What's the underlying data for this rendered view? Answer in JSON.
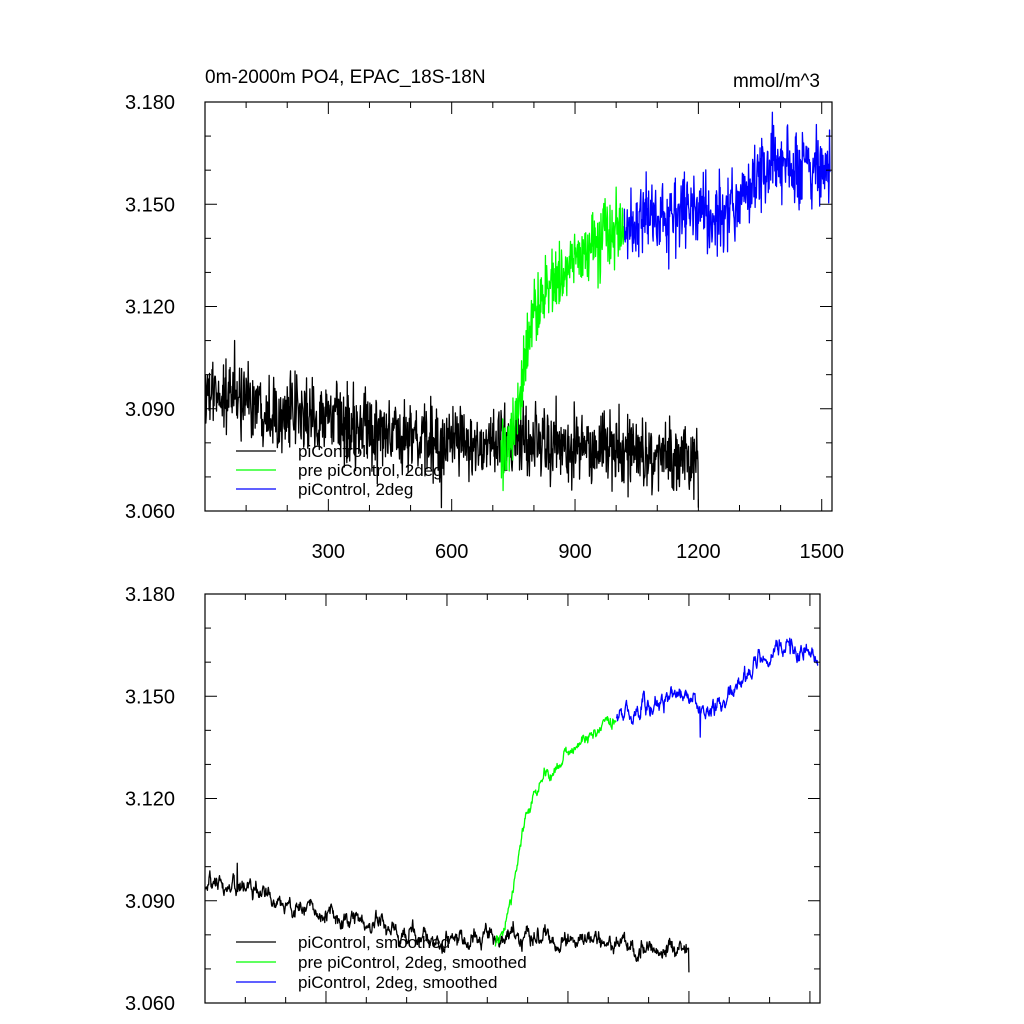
{
  "chart_data": [
    {
      "type": "line",
      "title_left": "0m-2000m PO4, EPAC_18S-18N",
      "title_right": "mmol/m^3",
      "xlim": [
        0,
        1525
      ],
      "ylim": [
        3.06,
        3.18
      ],
      "x_ticks": [
        300,
        600,
        900,
        1200,
        1500
      ],
      "y_ticks": [
        "3.060",
        "3.090",
        "3.120",
        "3.150",
        "3.180"
      ],
      "show_x_tick_labels": true,
      "legend_position": "bottom-left",
      "series": [
        {
          "name": "piControl",
          "color": "#000000",
          "x_range": [
            1,
            1200
          ],
          "anchors": [
            [
              1,
              3.094
            ],
            [
              100,
              3.093
            ],
            [
              200,
              3.088
            ],
            [
              300,
              3.087
            ],
            [
              400,
              3.083
            ],
            [
              500,
              3.081
            ],
            [
              600,
              3.08
            ],
            [
              700,
              3.08
            ],
            [
              800,
              3.08
            ],
            [
              900,
              3.079
            ],
            [
              1000,
              3.078
            ],
            [
              1100,
              3.076
            ],
            [
              1200,
              3.075
            ]
          ],
          "noise": 0.0055,
          "extremes": [
            [
              72,
              3.11
            ],
            [
              575,
              3.061
            ],
            [
              1200,
              3.061
            ]
          ]
        },
        {
          "name": "pre piControl, 2deg",
          "color": "#00ff00",
          "x_range": [
            720,
            1020
          ],
          "anchors": [
            [
              720,
              3.078
            ],
            [
              740,
              3.079
            ],
            [
              760,
              3.088
            ],
            [
              780,
              3.105
            ],
            [
              800,
              3.117
            ],
            [
              830,
              3.124
            ],
            [
              860,
              3.128
            ],
            [
              900,
              3.134
            ],
            [
              950,
              3.139
            ],
            [
              1000,
              3.142
            ],
            [
              1020,
              3.143
            ]
          ],
          "noise": 0.005,
          "extremes": [
            [
              725,
              3.066
            ],
            [
              1000,
              3.155
            ]
          ]
        },
        {
          "name": "piControl, 2deg",
          "color": "#0000ff",
          "x_range": [
            1020,
            1520
          ],
          "anchors": [
            [
              1020,
              3.144
            ],
            [
              1100,
              3.147
            ],
            [
              1200,
              3.149
            ],
            [
              1250,
              3.146
            ],
            [
              1300,
              3.152
            ],
            [
              1350,
              3.158
            ],
            [
              1400,
              3.162
            ],
            [
              1450,
              3.162
            ],
            [
              1500,
              3.161
            ],
            [
              1520,
              3.16
            ]
          ],
          "noise": 0.0055,
          "extremes": [
            [
              1380,
              3.177
            ],
            [
              1128,
              3.131
            ]
          ]
        }
      ]
    },
    {
      "type": "line",
      "xlim": [
        0,
        1525
      ],
      "ylim": [
        3.06,
        3.18
      ],
      "x_ticks": [
        300,
        600,
        900,
        1200,
        1500
      ],
      "y_ticks": [
        "3.060",
        "3.090",
        "3.120",
        "3.150",
        "3.180"
      ],
      "show_x_tick_labels": false,
      "legend_position": "bottom-left",
      "series": [
        {
          "name": "piControl, smoothed",
          "color": "#000000",
          "x_range": [
            1,
            1200
          ],
          "anchors": [
            [
              1,
              3.093
            ],
            [
              100,
              3.094
            ],
            [
              200,
              3.089
            ],
            [
              300,
              3.086
            ],
            [
              400,
              3.083
            ],
            [
              500,
              3.08
            ],
            [
              600,
              3.079
            ],
            [
              700,
              3.08
            ],
            [
              800,
              3.08
            ],
            [
              900,
              3.079
            ],
            [
              1000,
              3.077
            ],
            [
              1100,
              3.076
            ],
            [
              1200,
              3.075
            ]
          ],
          "noise": 0.0022,
          "extremes": [
            [
              80,
              3.101
            ],
            [
              1200,
              3.069
            ]
          ]
        },
        {
          "name": "pre piControl, 2deg, smoothed",
          "color": "#00ff00",
          "x_range": [
            720,
            1020
          ],
          "anchors": [
            [
              720,
              3.077
            ],
            [
              740,
              3.08
            ],
            [
              760,
              3.09
            ],
            [
              780,
              3.106
            ],
            [
              800,
              3.118
            ],
            [
              830,
              3.124
            ],
            [
              860,
              3.128
            ],
            [
              900,
              3.133
            ],
            [
              950,
              3.138
            ],
            [
              1000,
              3.141
            ],
            [
              1020,
              3.142
            ]
          ],
          "noise": 0.0015,
          "extremes": []
        },
        {
          "name": "piControl, 2deg, smoothed",
          "color": "#0000ff",
          "x_range": [
            1020,
            1520
          ],
          "anchors": [
            [
              1020,
              3.144
            ],
            [
              1100,
              3.147
            ],
            [
              1150,
              3.149
            ],
            [
              1200,
              3.151
            ],
            [
              1250,
              3.144
            ],
            [
              1300,
              3.15
            ],
            [
              1350,
              3.157
            ],
            [
              1400,
              3.162
            ],
            [
              1450,
              3.164
            ],
            [
              1500,
              3.163
            ],
            [
              1520,
              3.16
            ]
          ],
          "noise": 0.0022,
          "extremes": [
            [
              1228,
              3.138
            ],
            [
              1450,
              3.167
            ]
          ]
        }
      ]
    }
  ]
}
